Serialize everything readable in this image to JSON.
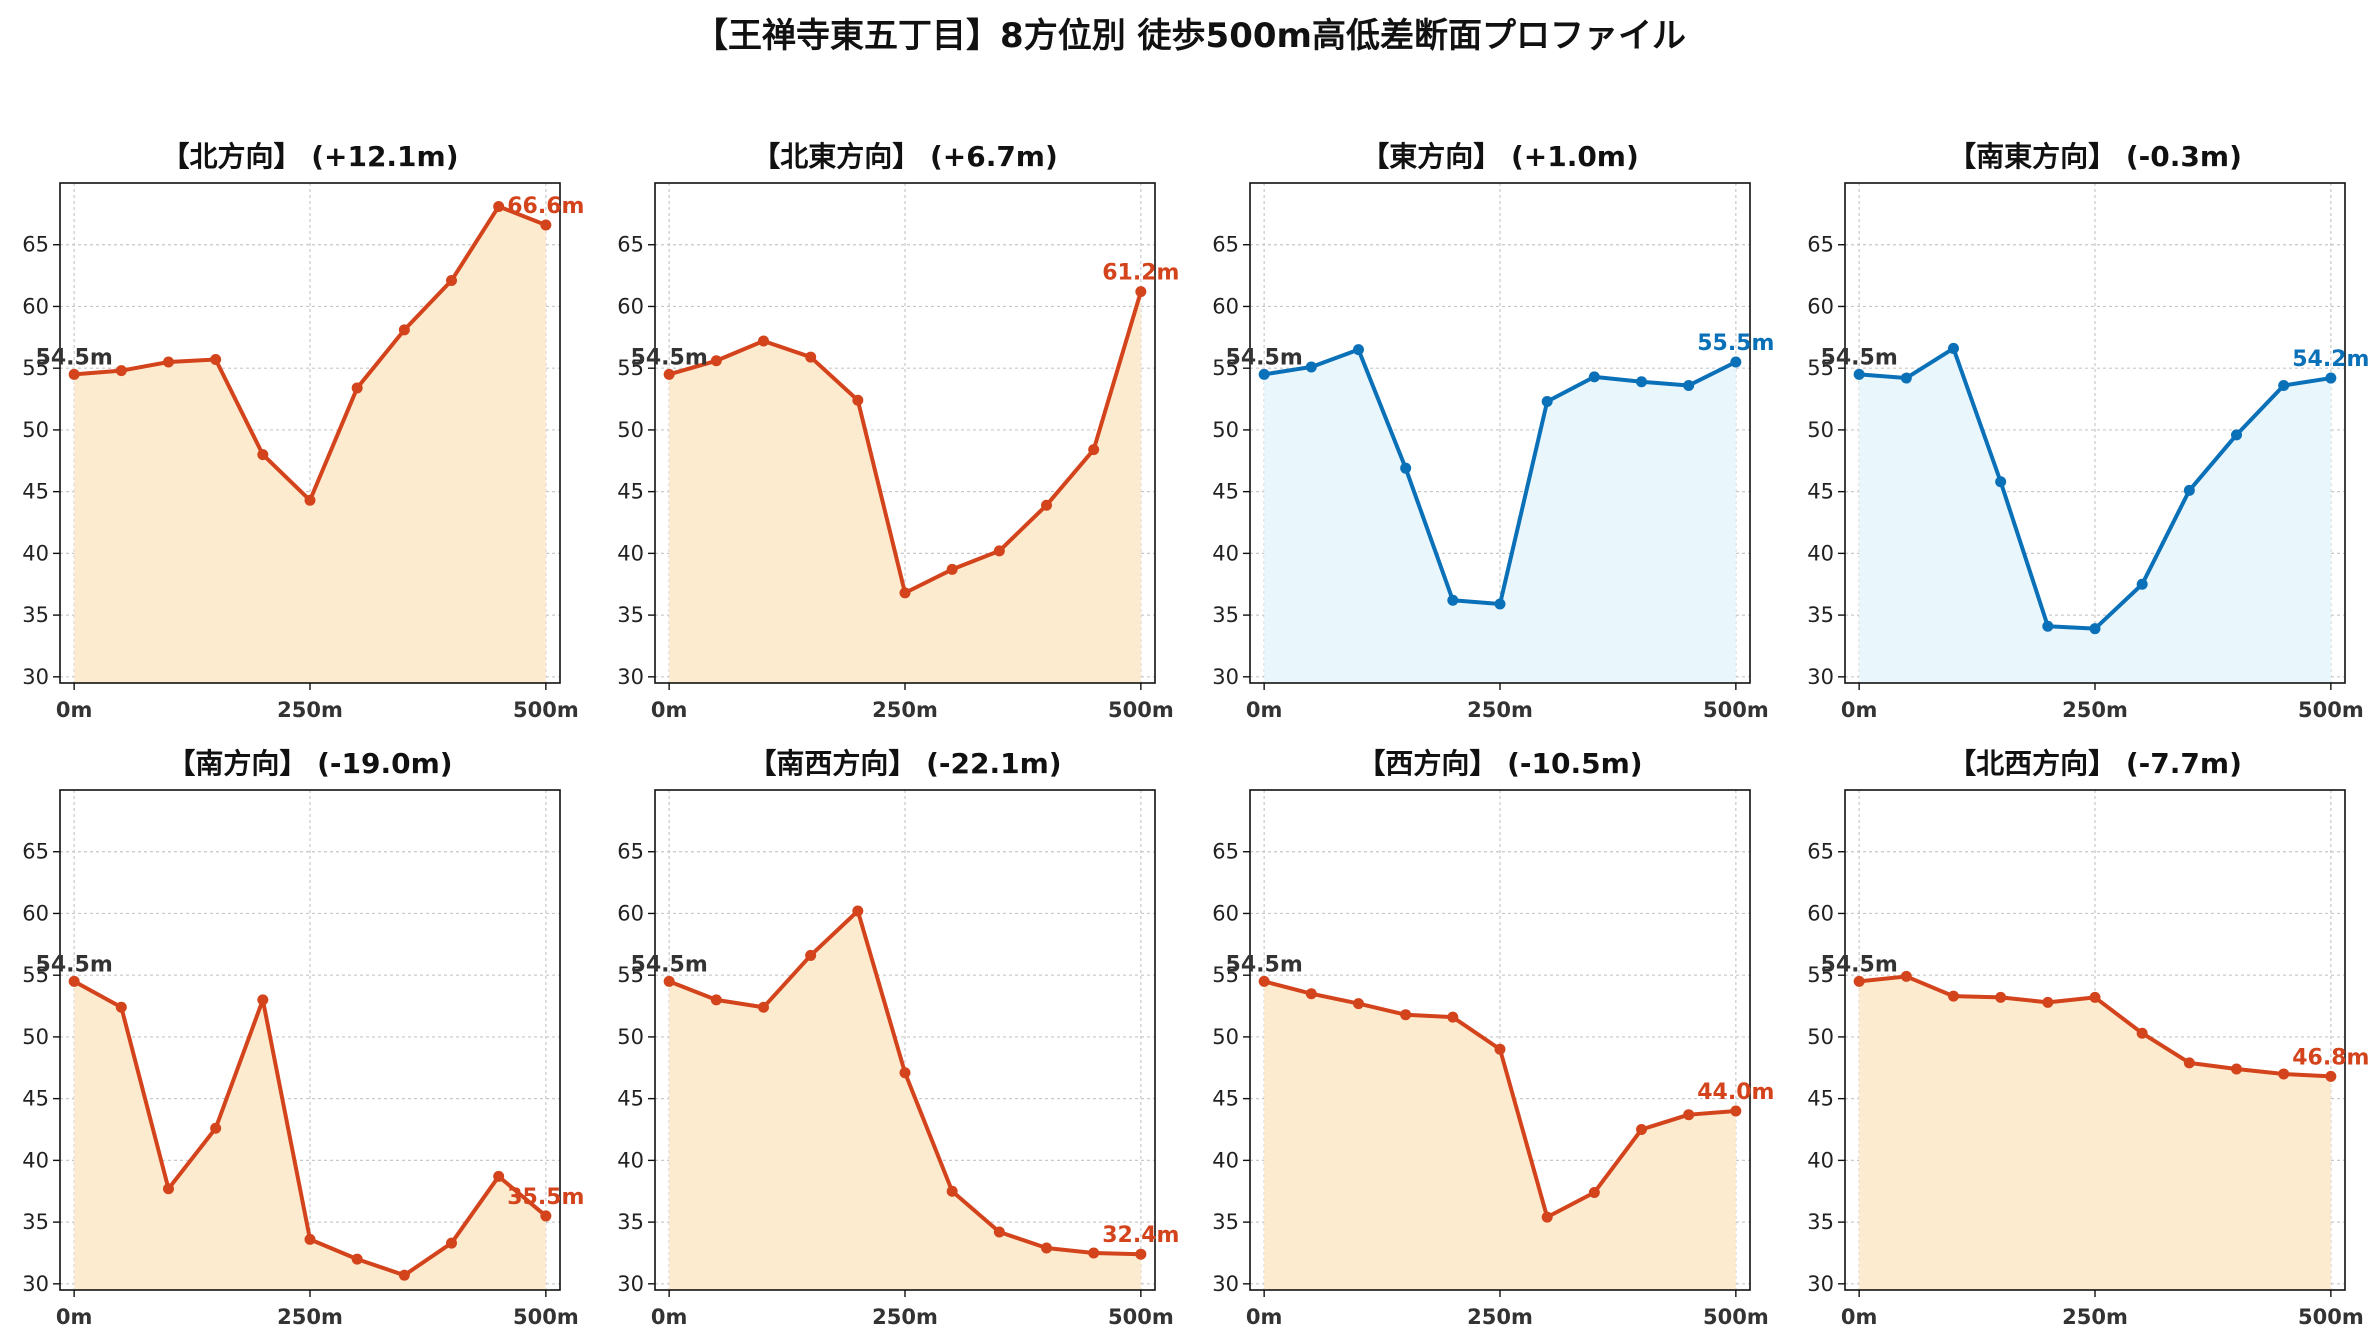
{
  "title": "【王禅寺東五丁目】8方位別 徒歩500m高低差断面プロファイル",
  "colors": {
    "up_line": "#d4441c",
    "up_fill": "#fdebd0",
    "down_line": "#0a70b8",
    "down_fill": "#e9f6fc",
    "start_label": "#333333"
  },
  "chart_data": [
    {
      "type": "area",
      "title": "【北方向】 (+12.1m)",
      "style": "up",
      "x": [
        0,
        50,
        100,
        150,
        200,
        250,
        300,
        350,
        400,
        450,
        500
      ],
      "values": [
        54.5,
        54.8,
        55.5,
        55.7,
        48.0,
        44.3,
        53.4,
        58.1,
        62.1,
        68.1,
        66.6
      ],
      "start_label": "54.5m",
      "end_label": "66.6m",
      "xticks": [
        "0m",
        "250m",
        "500m"
      ],
      "yticks": [
        30,
        35,
        40,
        45,
        50,
        55,
        60,
        65
      ],
      "xlim": [
        -15,
        515
      ],
      "ylim": [
        29.5,
        70
      ],
      "grid": true
    },
    {
      "type": "area",
      "title": "【北東方向】 (+6.7m)",
      "style": "up",
      "x": [
        0,
        50,
        100,
        150,
        200,
        250,
        300,
        350,
        400,
        450,
        500
      ],
      "values": [
        54.5,
        55.6,
        57.2,
        55.9,
        52.4,
        36.8,
        38.7,
        40.2,
        43.9,
        48.4,
        61.2
      ],
      "start_label": "54.5m",
      "end_label": "61.2m",
      "xticks": [
        "0m",
        "250m",
        "500m"
      ],
      "yticks": [
        30,
        35,
        40,
        45,
        50,
        55,
        60,
        65
      ],
      "xlim": [
        -15,
        515
      ],
      "ylim": [
        29.5,
        70
      ],
      "grid": true
    },
    {
      "type": "area",
      "title": "【東方向】 (+1.0m)",
      "style": "down",
      "x": [
        0,
        50,
        100,
        150,
        200,
        250,
        300,
        350,
        400,
        450,
        500
      ],
      "values": [
        54.5,
        55.1,
        56.5,
        46.9,
        36.2,
        35.9,
        52.3,
        54.3,
        53.9,
        53.6,
        55.5
      ],
      "start_label": "54.5m",
      "end_label": "55.5m",
      "xticks": [
        "0m",
        "250m",
        "500m"
      ],
      "yticks": [
        30,
        35,
        40,
        45,
        50,
        55,
        60,
        65
      ],
      "xlim": [
        -15,
        515
      ],
      "ylim": [
        29.5,
        70
      ],
      "grid": true
    },
    {
      "type": "area",
      "title": "【南東方向】 (-0.3m)",
      "style": "down",
      "x": [
        0,
        50,
        100,
        150,
        200,
        250,
        300,
        350,
        400,
        450,
        500
      ],
      "values": [
        54.5,
        54.2,
        56.6,
        45.8,
        34.1,
        33.9,
        37.5,
        45.1,
        49.6,
        53.6,
        54.2
      ],
      "start_label": "54.5m",
      "end_label": "54.2m",
      "xticks": [
        "0m",
        "250m",
        "500m"
      ],
      "yticks": [
        30,
        35,
        40,
        45,
        50,
        55,
        60,
        65
      ],
      "xlim": [
        -15,
        515
      ],
      "ylim": [
        29.5,
        70
      ],
      "grid": true
    },
    {
      "type": "area",
      "title": "【南方向】 (-19.0m)",
      "style": "up",
      "x": [
        0,
        50,
        100,
        150,
        200,
        250,
        300,
        350,
        400,
        450,
        500
      ],
      "values": [
        54.5,
        52.4,
        37.7,
        42.6,
        53.0,
        33.6,
        32.0,
        30.7,
        33.3,
        38.7,
        35.5
      ],
      "start_label": "54.5m",
      "end_label": "35.5m",
      "xticks": [
        "0m",
        "250m",
        "500m"
      ],
      "yticks": [
        30,
        35,
        40,
        45,
        50,
        55,
        60,
        65
      ],
      "xlim": [
        -15,
        515
      ],
      "ylim": [
        29.5,
        70
      ],
      "grid": true
    },
    {
      "type": "area",
      "title": "【南西方向】 (-22.1m)",
      "style": "up",
      "x": [
        0,
        50,
        100,
        150,
        200,
        250,
        300,
        350,
        400,
        450,
        500
      ],
      "values": [
        54.5,
        53.0,
        52.4,
        56.6,
        60.2,
        47.1,
        37.5,
        34.2,
        32.9,
        32.5,
        32.4
      ],
      "start_label": "54.5m",
      "end_label": "32.4m",
      "xticks": [
        "0m",
        "250m",
        "500m"
      ],
      "yticks": [
        30,
        35,
        40,
        45,
        50,
        55,
        60,
        65
      ],
      "xlim": [
        -15,
        515
      ],
      "ylim": [
        29.5,
        70
      ],
      "grid": true
    },
    {
      "type": "area",
      "title": "【西方向】 (-10.5m)",
      "style": "up",
      "x": [
        0,
        50,
        100,
        150,
        200,
        250,
        300,
        350,
        400,
        450,
        500
      ],
      "values": [
        54.5,
        53.5,
        52.7,
        51.8,
        51.6,
        49.0,
        35.4,
        37.4,
        42.5,
        43.7,
        44.0
      ],
      "start_label": "54.5m",
      "end_label": "44.0m",
      "xticks": [
        "0m",
        "250m",
        "500m"
      ],
      "yticks": [
        30,
        35,
        40,
        45,
        50,
        55,
        60,
        65
      ],
      "xlim": [
        -15,
        515
      ],
      "ylim": [
        29.5,
        70
      ],
      "grid": true
    },
    {
      "type": "area",
      "title": "【北西方向】 (-7.7m)",
      "style": "up",
      "x": [
        0,
        50,
        100,
        150,
        200,
        250,
        300,
        350,
        400,
        450,
        500
      ],
      "values": [
        54.5,
        54.9,
        53.3,
        53.2,
        52.8,
        53.2,
        50.3,
        47.9,
        47.4,
        47.0,
        46.8
      ],
      "start_label": "54.5m",
      "end_label": "46.8m",
      "xticks": [
        "0m",
        "250m",
        "500m"
      ],
      "yticks": [
        30,
        35,
        40,
        45,
        50,
        55,
        60,
        65
      ],
      "xlim": [
        -15,
        515
      ],
      "ylim": [
        29.5,
        70
      ],
      "grid": true
    }
  ]
}
